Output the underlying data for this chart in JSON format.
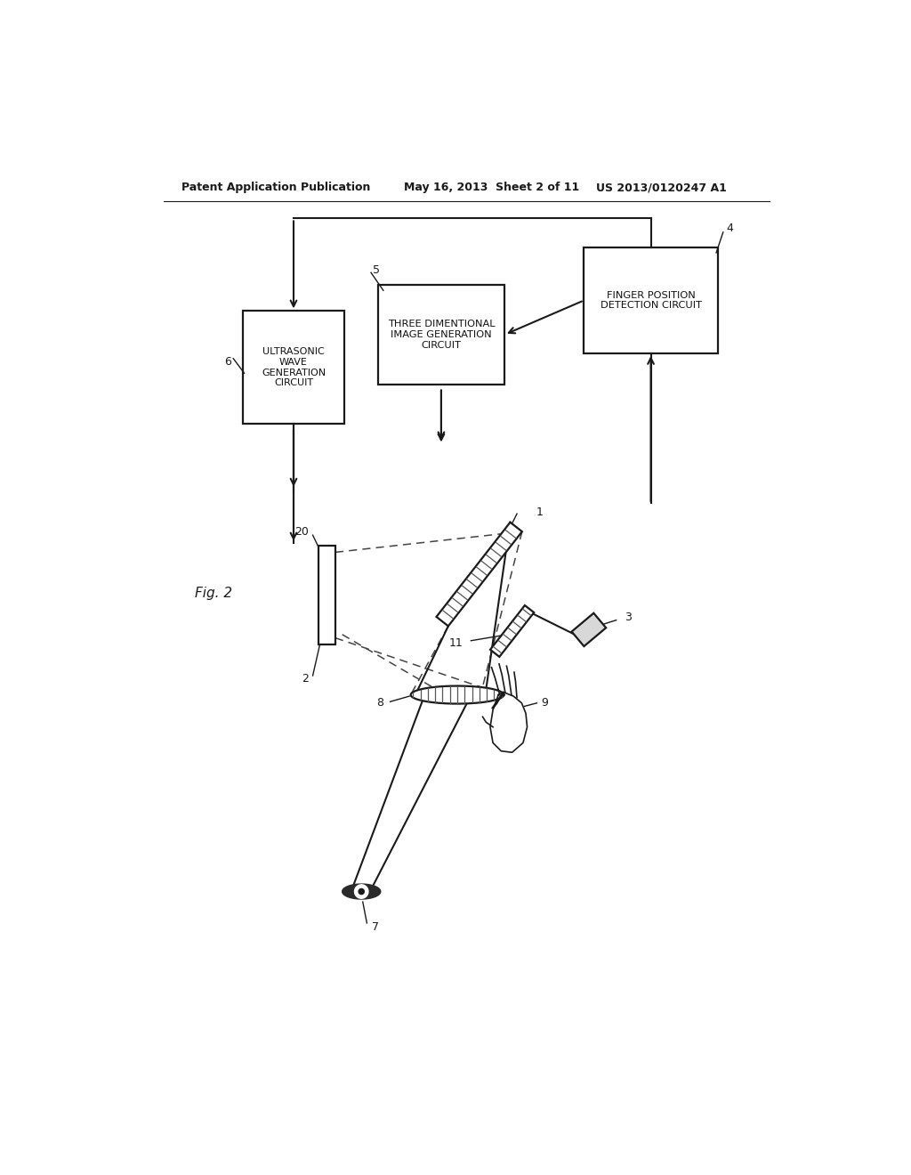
{
  "bg_color": "#ffffff",
  "header_left": "Patent Application Publication",
  "header_mid": "May 16, 2013  Sheet 2 of 11",
  "header_right": "US 2013/0120247 A1",
  "fig_label": "Fig. 2",
  "box1_label": "ULTRASONIC\nWAVE\nGENERATION\nCIRCUIT",
  "box2_label": "THREE DIMENTIONAL\nIMAGE GENERATION\nCIRCUIT",
  "box3_label": "FINGER POSITION\nDETECTION CIRCUIT",
  "ref_1": "1",
  "ref_2": "2",
  "ref_3": "3",
  "ref_4": "4",
  "ref_5": "5",
  "ref_6": "6",
  "ref_7": "7",
  "ref_8": "8",
  "ref_9": "9",
  "ref_11": "11",
  "ref_20": "20"
}
